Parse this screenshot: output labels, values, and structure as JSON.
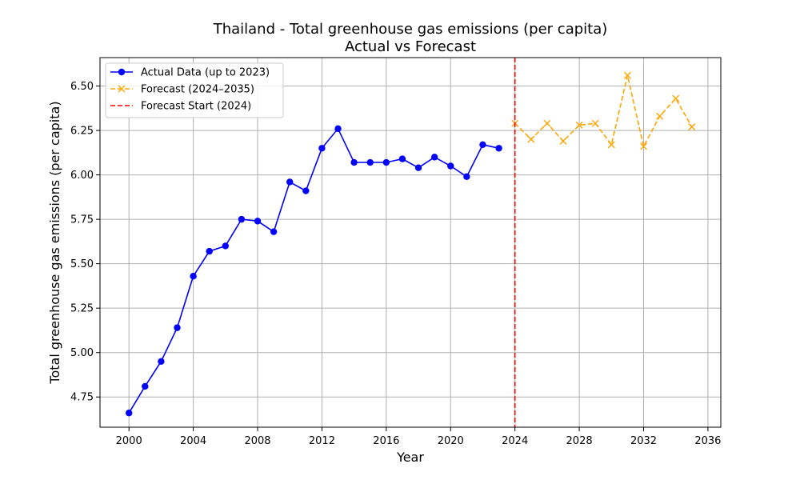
{
  "chart_data": {
    "type": "line",
    "title": "Thailand - Total greenhouse gas emissions (per capita)",
    "subtitle": "Actual vs Forecast",
    "xlabel": "Year",
    "ylabel": "Total greenhouse gas emissions (per capita)",
    "xlim": [
      1998.2,
      2036.8
    ],
    "ylim": [
      4.58,
      6.66
    ],
    "x_ticks": [
      2000,
      2004,
      2008,
      2012,
      2016,
      2020,
      2024,
      2028,
      2032,
      2036
    ],
    "y_ticks": [
      4.75,
      5.0,
      5.25,
      5.5,
      5.75,
      6.0,
      6.25,
      6.5
    ],
    "grid": true,
    "legend_position": "top-left",
    "series": [
      {
        "name": "Actual Data (up to 2023)",
        "color": "#0000ff",
        "style": "solid",
        "marker": "circle",
        "x": [
          2000,
          2001,
          2002,
          2003,
          2004,
          2005,
          2006,
          2007,
          2008,
          2009,
          2010,
          2011,
          2012,
          2013,
          2014,
          2015,
          2016,
          2017,
          2018,
          2019,
          2020,
          2021,
          2022,
          2023
        ],
        "y": [
          4.66,
          4.81,
          4.95,
          5.14,
          5.43,
          5.57,
          5.6,
          5.75,
          5.74,
          5.68,
          5.96,
          5.91,
          6.15,
          6.26,
          6.07,
          6.07,
          6.07,
          6.09,
          6.04,
          6.1,
          6.05,
          5.99,
          6.17,
          6.15
        ]
      },
      {
        "name": "Forecast (2024–2035)",
        "color": "#ffa500",
        "style": "dashed",
        "marker": "x",
        "x": [
          2024,
          2025,
          2026,
          2027,
          2028,
          2029,
          2030,
          2031,
          2032,
          2033,
          2034,
          2035
        ],
        "y": [
          6.29,
          6.2,
          6.29,
          6.19,
          6.28,
          6.29,
          6.17,
          6.56,
          6.16,
          6.33,
          6.43,
          6.27
        ]
      }
    ],
    "vline": {
      "name": "Forecast Start (2024)",
      "x": 2024,
      "color": "#ff0000",
      "style": "dashed"
    }
  }
}
